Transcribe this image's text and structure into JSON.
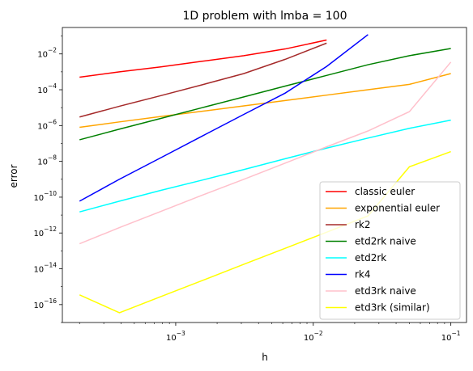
{
  "chart_data": {
    "type": "line",
    "title": "1D problem with lmba = 100",
    "xlabel": "h",
    "ylabel": "error",
    "xscale": "log",
    "yscale": "log",
    "xlim": [
      0.00015,
      0.13
    ],
    "ylim": [
      1e-17,
      0.3
    ],
    "grid": false,
    "legend_position": "lower-right",
    "x_ticks": [
      {
        "value": 0.001,
        "base": "10",
        "exp": "−3"
      },
      {
        "value": 0.01,
        "base": "10",
        "exp": "−2"
      },
      {
        "value": 0.1,
        "base": "10",
        "exp": "−1"
      }
    ],
    "y_ticks": [
      {
        "value": 1e-16,
        "base": "10",
        "exp": "−16"
      },
      {
        "value": 1e-14,
        "base": "10",
        "exp": "−14"
      },
      {
        "value": 1e-12,
        "base": "10",
        "exp": "−12"
      },
      {
        "value": 1e-10,
        "base": "10",
        "exp": "−10"
      },
      {
        "value": 1e-08,
        "base": "10",
        "exp": "−8"
      },
      {
        "value": 1e-06,
        "base": "10",
        "exp": "−6"
      },
      {
        "value": 0.0001,
        "base": "10",
        "exp": "−4"
      },
      {
        "value": 0.01,
        "base": "10",
        "exp": "−2"
      }
    ],
    "series": [
      {
        "name": "classic euler",
        "color": "#ff0000",
        "points": [
          [
            0.0002,
            0.0005
          ],
          [
            0.00039,
            0.001
          ],
          [
            0.00078,
            0.0019
          ],
          [
            0.00156,
            0.0039
          ],
          [
            0.00313,
            0.008
          ],
          [
            0.00625,
            0.019
          ],
          [
            0.0125,
            0.06
          ]
        ]
      },
      {
        "name": "exponential euler",
        "color": "#ffa500",
        "points": [
          [
            0.0002,
            8e-07
          ],
          [
            0.00039,
            1.6e-06
          ],
          [
            0.00078,
            3.2e-06
          ],
          [
            0.00156,
            6.3e-06
          ],
          [
            0.00313,
            1.25e-05
          ],
          [
            0.00625,
            2.5e-05
          ],
          [
            0.0125,
            5e-05
          ],
          [
            0.025,
            0.0001
          ],
          [
            0.05,
            0.0002
          ],
          [
            0.1,
            0.0008
          ]
        ]
      },
      {
        "name": "rk2",
        "color": "#a52a2a",
        "points": [
          [
            0.0002,
            3e-06
          ],
          [
            0.00039,
            1.2e-05
          ],
          [
            0.00078,
            4.7e-05
          ],
          [
            0.00156,
            0.00019
          ],
          [
            0.00313,
            0.0008
          ],
          [
            0.00625,
            0.005
          ],
          [
            0.0125,
            0.04
          ]
        ]
      },
      {
        "name": "etd2rk naive",
        "color": "#008000",
        "points": [
          [
            0.0002,
            1.6e-07
          ],
          [
            0.00039,
            6.3e-07
          ],
          [
            0.00078,
            2.5e-06
          ],
          [
            0.00156,
            1e-05
          ],
          [
            0.00313,
            4e-05
          ],
          [
            0.00625,
            0.00016
          ],
          [
            0.0125,
            0.00063
          ],
          [
            0.025,
            0.0025
          ],
          [
            0.05,
            0.008
          ],
          [
            0.1,
            0.02
          ]
        ]
      },
      {
        "name": "etd2rk",
        "color": "#00ffff",
        "points": [
          [
            0.0002,
            1.5e-11
          ],
          [
            0.00039,
            6e-11
          ],
          [
            0.00078,
            2.4e-10
          ],
          [
            0.00156,
            9e-10
          ],
          [
            0.00313,
            3.5e-09
          ],
          [
            0.00625,
            1.4e-08
          ],
          [
            0.0125,
            5.5e-08
          ],
          [
            0.025,
            2e-07
          ],
          [
            0.05,
            7e-07
          ],
          [
            0.1,
            2e-06
          ]
        ]
      },
      {
        "name": "rk4",
        "color": "#0000ff",
        "points": [
          [
            0.0002,
            6e-11
          ],
          [
            0.00039,
            1e-09
          ],
          [
            0.00078,
            1.6e-08
          ],
          [
            0.00156,
            2.6e-07
          ],
          [
            0.00313,
            4.2e-06
          ],
          [
            0.00625,
            6.5e-05
          ],
          [
            0.0125,
            0.002
          ],
          [
            0.025,
            0.12
          ]
        ]
      },
      {
        "name": "etd3rk naive",
        "color": "#ffc0cb",
        "points": [
          [
            0.0002,
            2.5e-13
          ],
          [
            0.00039,
            2e-12
          ],
          [
            0.00078,
            1.6e-11
          ],
          [
            0.00156,
            1.3e-10
          ],
          [
            0.00313,
            1e-09
          ],
          [
            0.00625,
            8e-09
          ],
          [
            0.0125,
            6.5e-08
          ],
          [
            0.025,
            5e-07
          ],
          [
            0.05,
            6e-06
          ],
          [
            0.1,
            0.0035
          ]
        ]
      },
      {
        "name": "etd3rk (similar)",
        "color": "#ffff00",
        "points": [
          [
            0.0002,
            3.5e-16
          ],
          [
            0.00039,
            3.5e-17
          ],
          [
            0.00078,
            2.8e-16
          ],
          [
            0.00156,
            2.2e-15
          ],
          [
            0.00313,
            1.8e-14
          ],
          [
            0.00625,
            1.4e-13
          ],
          [
            0.0125,
            1.1e-12
          ],
          [
            0.025,
            9e-12
          ],
          [
            0.05,
            5e-09
          ],
          [
            0.1,
            3.5e-08
          ]
        ]
      }
    ]
  }
}
